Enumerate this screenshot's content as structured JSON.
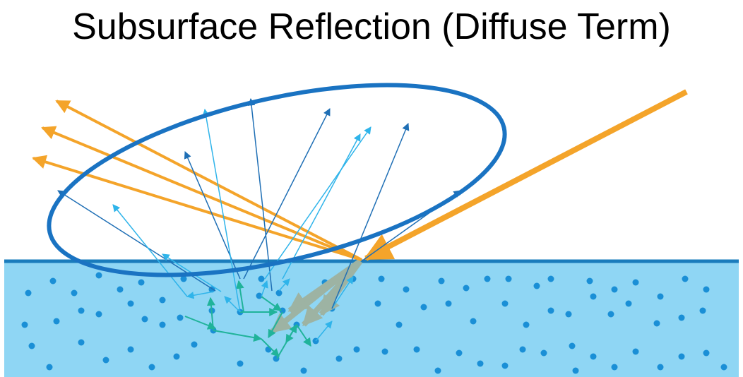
{
  "title": "Subsurface Reflection (Diffuse Term)",
  "colors": {
    "background": "#ffffff",
    "medium": "#8fd6f4",
    "surface_line": "#1a7cbc",
    "particle": "#1a8fd6",
    "incident_light": "#f4a42a",
    "specular_reflection": "#f4a42a",
    "diffuse_ray_dark": "#1f6fb5",
    "diffuse_ray_light": "#2fb4ea",
    "internal_scatter": "#20b39a",
    "refracted": "#9db3a3",
    "lobe": "#1a73c2"
  }
}
